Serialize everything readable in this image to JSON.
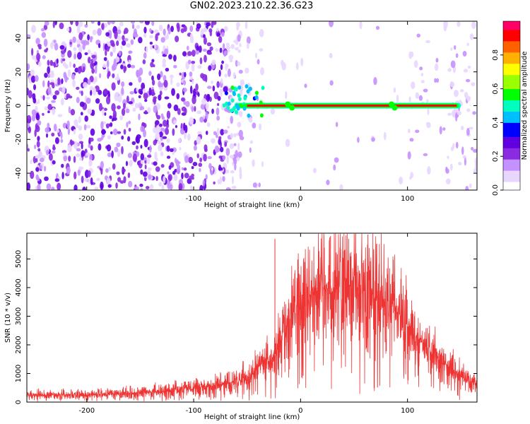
{
  "figure_title": "GN02.2023.210.22.36.G23",
  "colors": {
    "spectrum_scale": [
      "#ffffff",
      "#e9d6ff",
      "#c590ff",
      "#8a2be2",
      "#6000e0",
      "#0000ff",
      "#00bfff",
      "#00ffbf",
      "#00ff00",
      "#9aff00",
      "#ffff00",
      "#ffb000",
      "#ff6000",
      "#ff0000",
      "#ff0066"
    ],
    "snr_line": "#ee3333"
  },
  "chart_data": [
    {
      "type": "heatmap",
      "title": "GN02.2023.210.22.36.G23",
      "xlabel": "Height of straight line (km)",
      "ylabel": "Frequency (Hz)",
      "xlim": [
        -256,
        165
      ],
      "ylim": [
        -50,
        50
      ],
      "x_ticks": [
        -200,
        -100,
        0,
        100
      ],
      "y_ticks": [
        -40,
        -20,
        0,
        20,
        40
      ],
      "colorbar": {
        "label": "Normalized spectral amplitude",
        "range": [
          0.0,
          1.0
        ],
        "ticks": [
          "0.0",
          "0.2",
          "0.4",
          "0.6",
          "0.8"
        ]
      },
      "features": {
        "noise_region_x": [
          -256,
          -55
        ],
        "signal_band_x": [
          -70,
          150
        ],
        "signal_band_freq": 0,
        "signal_amplitude": 0.9,
        "noise_amplitude": 0.2
      },
      "grid": false,
      "legend": "none"
    },
    {
      "type": "line",
      "xlabel": "Height of straight line (km)",
      "ylabel": "SNR (10 * v/v)",
      "xlim": [
        -256,
        165
      ],
      "ylim": [
        0,
        5900
      ],
      "x_ticks": [
        -200,
        -100,
        0,
        100
      ],
      "y_ticks": [
        0,
        1000,
        2000,
        3000,
        4000,
        5000
      ],
      "envelope": {
        "x": [
          -256,
          -200,
          -150,
          -100,
          -80,
          -60,
          -45,
          -38,
          -30,
          -25,
          -20,
          -15,
          -10,
          0,
          10,
          20,
          30,
          40,
          50,
          60,
          70,
          80,
          90,
          100,
          110,
          120,
          130,
          140,
          150,
          160,
          165
        ],
        "y": [
          250,
          260,
          320,
          480,
          560,
          700,
          950,
          1300,
          1400,
          1600,
          2000,
          2500,
          3000,
          3400,
          3700,
          3900,
          4000,
          4050,
          4000,
          3950,
          3900,
          3600,
          3200,
          2700,
          2200,
          1800,
          1500,
          1200,
          900,
          700,
          650
        ]
      },
      "spikes": [
        [
          -24,
          5700
        ],
        [
          28,
          5800
        ],
        [
          63,
          5850
        ]
      ],
      "grid": false,
      "legend": "none"
    }
  ]
}
